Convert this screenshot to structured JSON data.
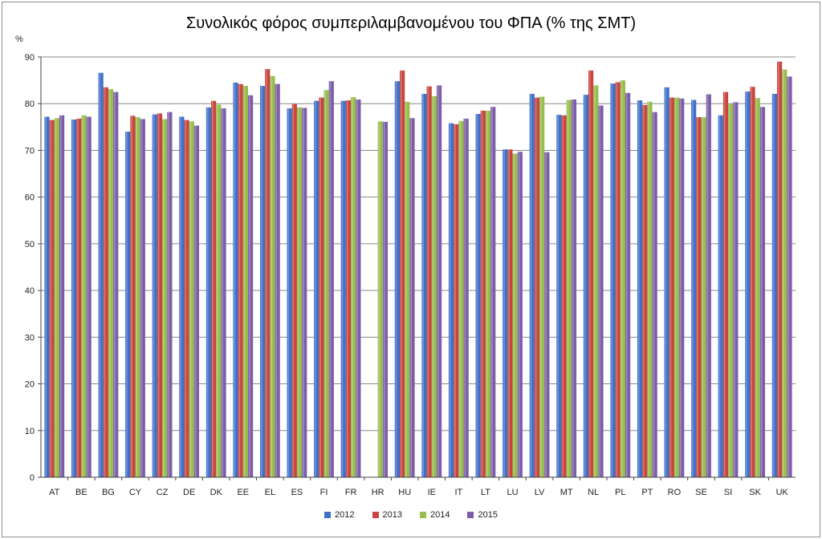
{
  "chart_data": {
    "type": "bar",
    "title": "Συνολικός φόρος συμπεριλαμβανομένου του ΦΠΑ (% της ΣΜΤ)",
    "ylabel": "%",
    "xlabel": "",
    "ylim": [
      0,
      90
    ],
    "yticks": [
      0,
      10,
      20,
      30,
      40,
      50,
      60,
      70,
      80,
      90
    ],
    "grid": true,
    "legend_position": "bottom",
    "categories": [
      "AT",
      "BE",
      "BG",
      "CY",
      "CZ",
      "DE",
      "DK",
      "EE",
      "EL",
      "ES",
      "FI",
      "FR",
      "HR",
      "HU",
      "IE",
      "IT",
      "LT",
      "LU",
      "LV",
      "MT",
      "NL",
      "PL",
      "PT",
      "RO",
      "SE",
      "SI",
      "SK",
      "UK"
    ],
    "series": [
      {
        "name": "2012",
        "color": "#3f70c9",
        "values": [
          77.2,
          76.6,
          86.6,
          74.0,
          77.7,
          77.2,
          79.2,
          84.5,
          83.8,
          79.0,
          80.6,
          80.6,
          null,
          84.8,
          82.1,
          75.8,
          77.8,
          70.2,
          82.1,
          77.6,
          81.9,
          84.3,
          80.7,
          83.5,
          80.8,
          77.5,
          82.6,
          82.1
        ]
      },
      {
        "name": "2013",
        "color": "#c8443f",
        "values": [
          76.5,
          76.8,
          83.5,
          77.4,
          77.9,
          76.5,
          80.6,
          84.2,
          87.4,
          79.9,
          81.3,
          80.7,
          null,
          87.1,
          83.7,
          75.6,
          78.5,
          70.2,
          81.3,
          77.5,
          87.1,
          84.6,
          79.7,
          81.3,
          77.1,
          82.5,
          83.6,
          89.0
        ]
      },
      {
        "name": "2014",
        "color": "#97bd4c",
        "values": [
          76.9,
          77.5,
          83.1,
          77.1,
          76.7,
          76.2,
          79.8,
          83.8,
          85.9,
          79.2,
          82.9,
          81.4,
          76.2,
          80.4,
          81.6,
          76.3,
          78.5,
          69.3,
          81.5,
          80.8,
          83.9,
          85.0,
          80.4,
          81.3,
          77.1,
          79.9,
          81.2,
          87.3
        ]
      },
      {
        "name": "2015",
        "color": "#7c5da9",
        "values": [
          77.5,
          77.2,
          82.5,
          76.7,
          78.2,
          75.3,
          79.0,
          81.8,
          84.2,
          79.1,
          84.8,
          80.9,
          76.1,
          76.9,
          83.9,
          76.8,
          79.3,
          69.7,
          69.6,
          80.9,
          79.6,
          82.3,
          78.2,
          81.1,
          82.0,
          80.3,
          79.3,
          85.8
        ]
      }
    ]
  }
}
